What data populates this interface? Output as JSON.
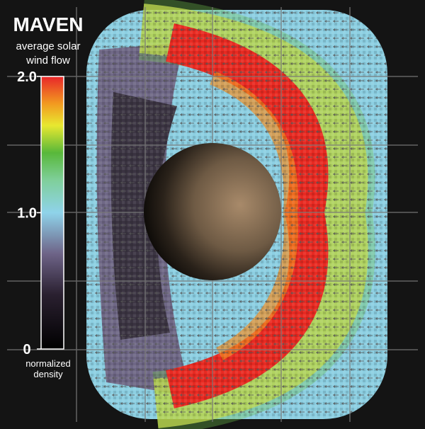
{
  "title": "MAVEN",
  "subtitle": [
    "average solar",
    "wind flow"
  ],
  "colorbar": {
    "range": [
      0,
      2
    ],
    "ticks": [
      {
        "value": 2,
        "label": "2.0"
      },
      {
        "value": 1,
        "label": "1.0"
      },
      0
    ],
    "label": [
      "normalized",
      "density"
    ]
  }
}
